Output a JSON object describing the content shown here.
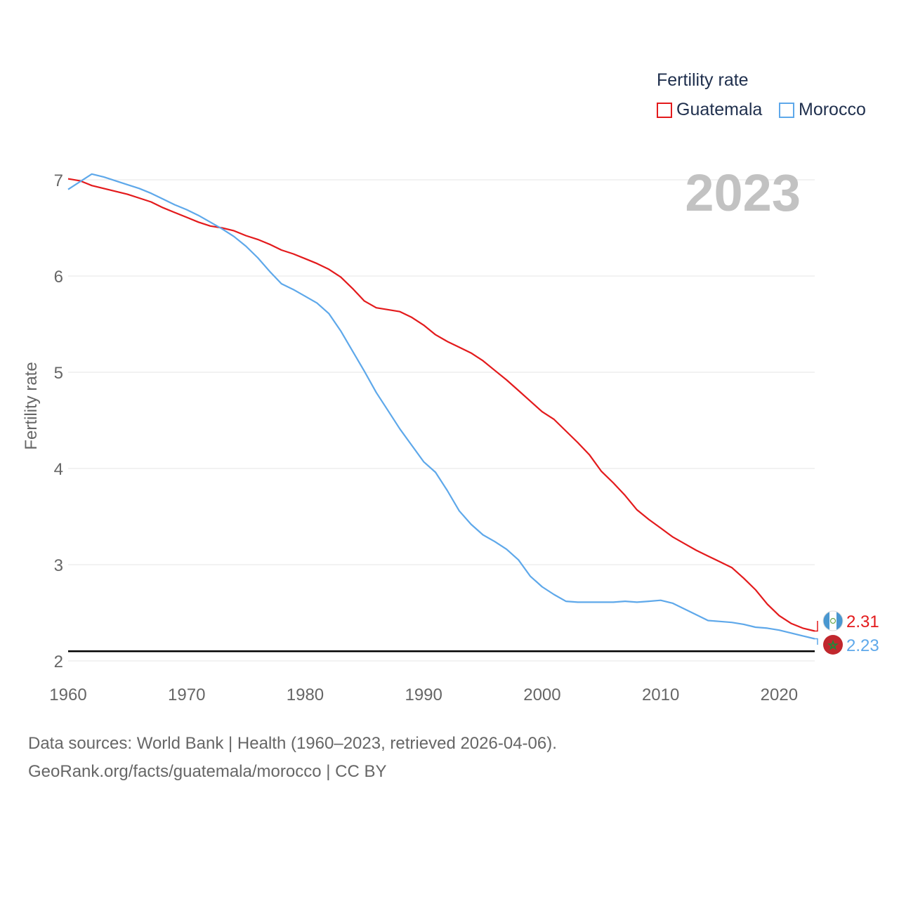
{
  "legend": {
    "title": "Fertility rate",
    "items": [
      {
        "label": "Guatemala",
        "color": "#e31a1c"
      },
      {
        "label": "Morocco",
        "color": "#5ea8ea"
      }
    ]
  },
  "footer": {
    "line1": "Data sources: World Bank | Health (1960–2023, retrieved 2026-04-06).",
    "line2": "GeoRank.org/facts/guatemala/morocco | CC BY"
  },
  "chart_data": {
    "type": "line",
    "title": "Fertility rate",
    "year_label": "2023",
    "xlabel": "",
    "ylabel": "Fertility rate",
    "xlim": [
      1960,
      2023
    ],
    "ylim": [
      2,
      7.3
    ],
    "x_ticks": [
      1960,
      1970,
      1980,
      1990,
      2000,
      2010,
      2020
    ],
    "y_ticks": [
      2,
      3,
      4,
      5,
      6,
      7
    ],
    "reference_line": 2.1,
    "x": [
      1960,
      1961,
      1962,
      1963,
      1964,
      1965,
      1966,
      1967,
      1968,
      1969,
      1970,
      1971,
      1972,
      1973,
      1974,
      1975,
      1976,
      1977,
      1978,
      1979,
      1980,
      1981,
      1982,
      1983,
      1984,
      1985,
      1986,
      1987,
      1988,
      1989,
      1990,
      1991,
      1992,
      1993,
      1994,
      1995,
      1996,
      1997,
      1998,
      1999,
      2000,
      2001,
      2002,
      2003,
      2004,
      2005,
      2006,
      2007,
      2008,
      2009,
      2010,
      2011,
      2012,
      2013,
      2014,
      2015,
      2016,
      2017,
      2018,
      2019,
      2020,
      2021,
      2022,
      2023
    ],
    "series": [
      {
        "name": "Guatemala",
        "color": "#e31a1c",
        "end_label": "2.31",
        "values": [
          7.01,
          6.99,
          6.94,
          6.91,
          6.88,
          6.85,
          6.81,
          6.77,
          6.71,
          6.66,
          6.61,
          6.56,
          6.52,
          6.5,
          6.47,
          6.42,
          6.38,
          6.33,
          6.27,
          6.23,
          6.18,
          6.13,
          6.07,
          5.99,
          5.87,
          5.74,
          5.67,
          5.65,
          5.63,
          5.57,
          5.49,
          5.39,
          5.32,
          5.26,
          5.2,
          5.12,
          5.02,
          4.92,
          4.81,
          4.7,
          4.59,
          4.51,
          4.39,
          4.27,
          4.14,
          3.97,
          3.85,
          3.72,
          3.57,
          3.47,
          3.38,
          3.29,
          3.22,
          3.15,
          3.09,
          3.03,
          2.97,
          2.86,
          2.74,
          2.59,
          2.47,
          2.39,
          2.34,
          2.31
        ]
      },
      {
        "name": "Morocco",
        "color": "#5ea8ea",
        "end_label": "2.23",
        "values": [
          6.9,
          6.98,
          7.06,
          7.03,
          6.99,
          6.95,
          6.91,
          6.86,
          6.8,
          6.74,
          6.69,
          6.63,
          6.56,
          6.49,
          6.41,
          6.31,
          6.19,
          6.05,
          5.92,
          5.86,
          5.79,
          5.72,
          5.61,
          5.43,
          5.22,
          5.01,
          4.79,
          4.6,
          4.41,
          4.24,
          4.07,
          3.96,
          3.77,
          3.56,
          3.42,
          3.31,
          3.24,
          3.16,
          3.05,
          2.88,
          2.77,
          2.69,
          2.62,
          2.61,
          2.61,
          2.61,
          2.61,
          2.62,
          2.61,
          2.62,
          2.63,
          2.6,
          2.54,
          2.48,
          2.42,
          2.41,
          2.4,
          2.38,
          2.35,
          2.34,
          2.32,
          2.29,
          2.26,
          2.23
        ]
      }
    ]
  }
}
